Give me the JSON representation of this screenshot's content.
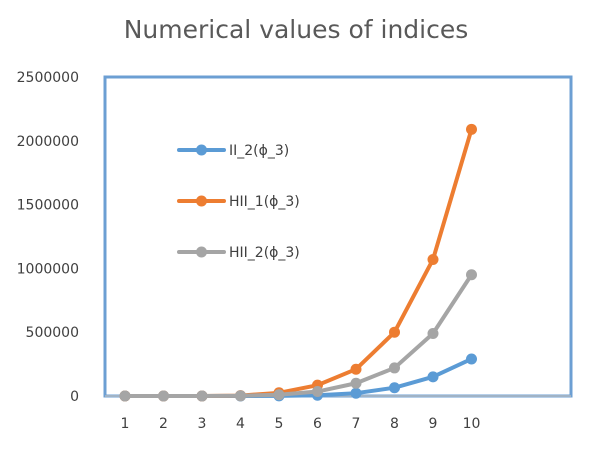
{
  "chart_data": {
    "type": "line",
    "title": "Numerical values of indices",
    "xlabel": "",
    "ylabel": "",
    "categories": [
      "1",
      "2",
      "3",
      "4",
      "5",
      "6",
      "7",
      "8",
      "9",
      "10"
    ],
    "ylim": [
      0,
      2500000
    ],
    "yticks": [
      "0",
      "500000",
      "1000000",
      "1500000",
      "2000000",
      "2500000"
    ],
    "grid": false,
    "legend_position": "upper-left-inside",
    "series": [
      {
        "name": "II_2(ϕ_3)",
        "color": "#5B9BD5",
        "values": [
          0,
          0,
          0,
          0,
          1000,
          6000,
          22000,
          65000,
          150000,
          290000
        ]
      },
      {
        "name": "HII_1(ϕ_3)",
        "color": "#ED7D31",
        "values": [
          0,
          0,
          0,
          3000,
          25000,
          85000,
          210000,
          500000,
          1070000,
          2090000
        ]
      },
      {
        "name": "HII_2(ϕ_3)",
        "color": "#A5A5A5",
        "values": [
          0,
          0,
          0,
          1500,
          10000,
          35000,
          100000,
          220000,
          490000,
          950000
        ]
      }
    ]
  }
}
